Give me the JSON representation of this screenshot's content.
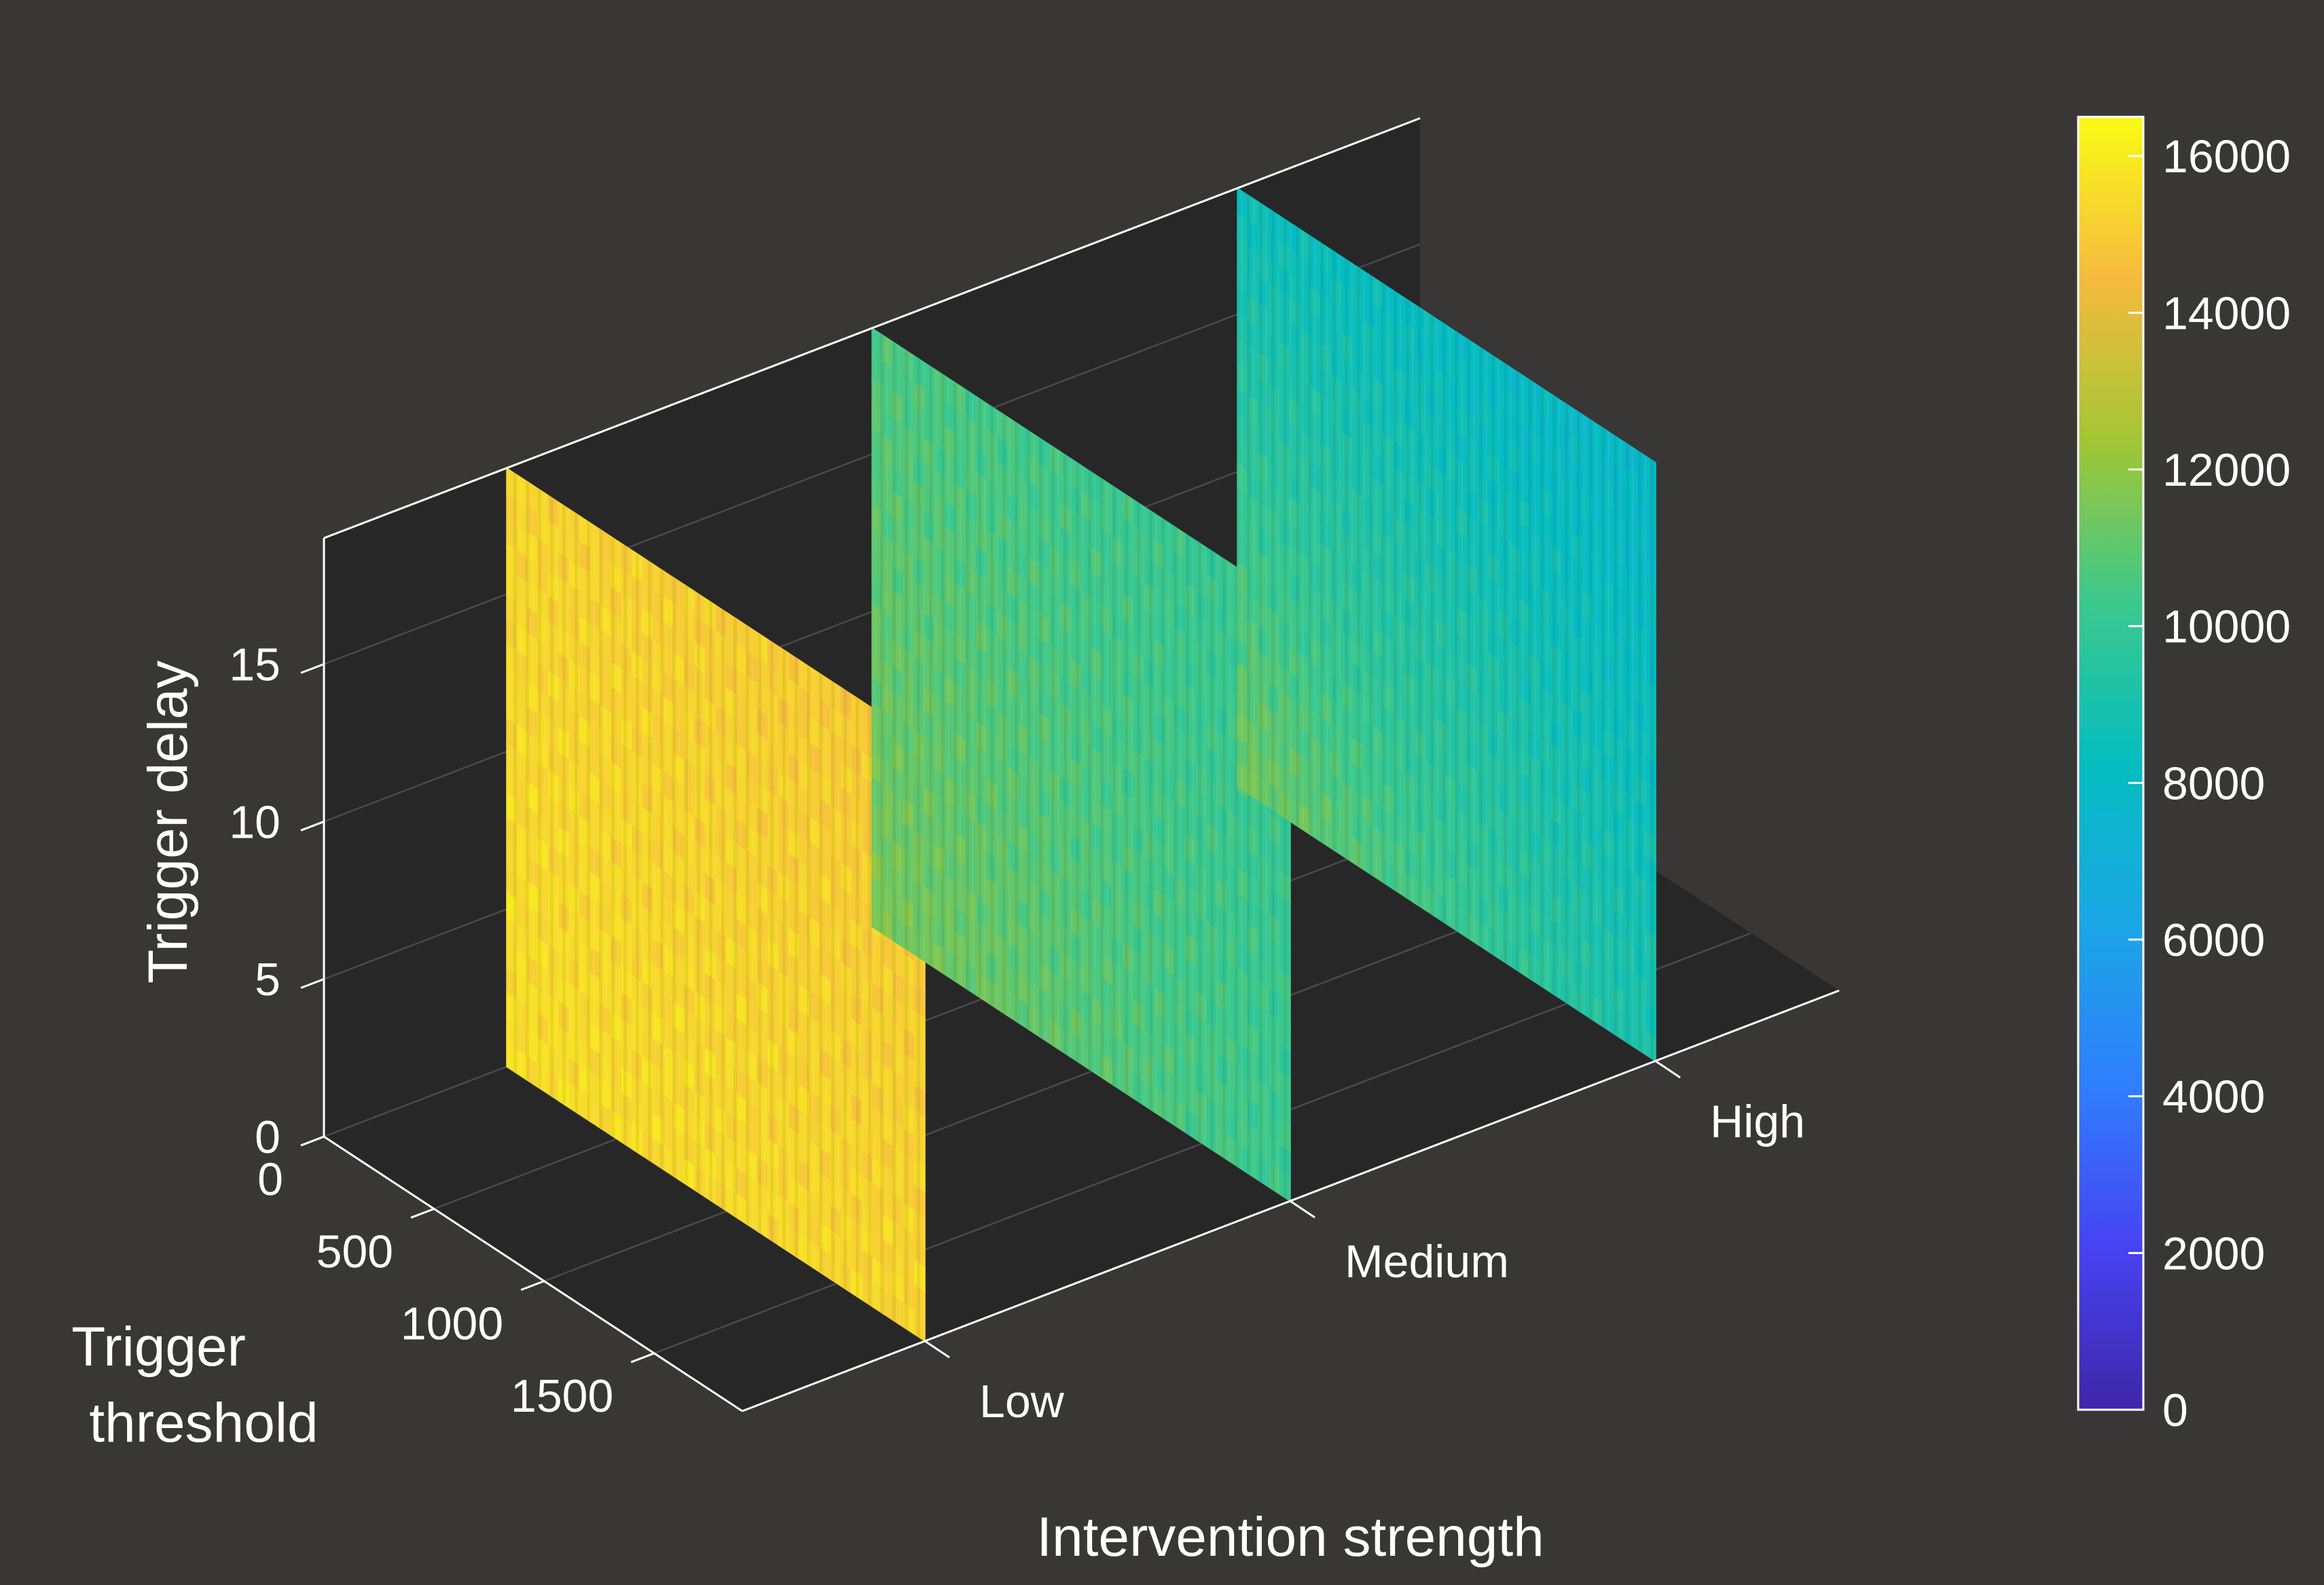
{
  "chart_data": {
    "type": "heatmap",
    "subtype": "3d-slices",
    "xlabel": "Intervention strength",
    "ylabel": "Trigger threshold",
    "zlabel": "Trigger delay",
    "x_categories": [
      "Low",
      "Medium",
      "High"
    ],
    "y_ticks": [
      0,
      500,
      1000,
      1500
    ],
    "z_ticks": [
      0,
      5,
      10,
      15
    ],
    "ylim": [
      0,
      1900
    ],
    "zlim": [
      0,
      19
    ],
    "colorbar": {
      "colormap": "parula",
      "min": 0,
      "max": 16500,
      "ticks": [
        0,
        2000,
        4000,
        6000,
        8000,
        10000,
        12000,
        14000,
        16000
      ]
    },
    "slices": [
      {
        "category": "Low",
        "corner_values": {
          "y0_z0": 15600,
          "y1_z0": 15300,
          "y0_z1": 15300,
          "y1_z1": 14900
        }
      },
      {
        "category": "Medium",
        "corner_values": {
          "y0_z0": 11600,
          "y1_z0": 10200,
          "y0_z1": 10600,
          "y1_z1": 10000
        }
      },
      {
        "category": "High",
        "corner_values": {
          "y0_z0": 11500,
          "y1_z0": 9000,
          "y0_z1": 8500,
          "y1_z1": 7800
        }
      }
    ],
    "grid": true
  },
  "colors": {
    "background": "#383735",
    "axes_face": "#272727",
    "axis_lines": "#ffffff",
    "grid": "#4a4a4a"
  }
}
